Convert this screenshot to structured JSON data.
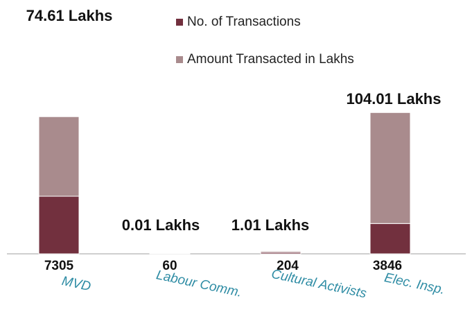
{
  "chart_data": {
    "type": "stacked_bar",
    "categories": [
      "MVD",
      "Labour Comm.",
      "Cultural Activists",
      "Elec. Insp."
    ],
    "series": [
      {
        "name": "No. of Transactions",
        "color": "#72303e",
        "values": [
          7305,
          60,
          204,
          3846
        ]
      },
      {
        "name": "Amount Transacted in Lakhs",
        "color": "#a98b8d",
        "values": [
          74.61,
          0.01,
          1.01,
          104.01
        ],
        "value_labels": [
          "74.61 Lakhs",
          "0.01 Lakhs",
          "1.01 Lakhs",
          "104.01 Lakhs"
        ]
      }
    ],
    "legend": "top-right"
  }
}
